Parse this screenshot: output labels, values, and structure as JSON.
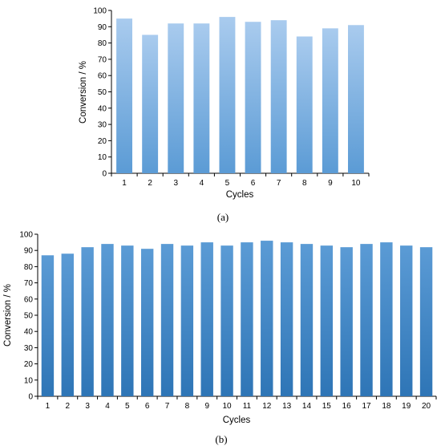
{
  "chart_data": [
    {
      "type": "bar",
      "panel_label": "(a)",
      "categories": [
        "1",
        "2",
        "3",
        "4",
        "5",
        "6",
        "7",
        "8",
        "9",
        "10"
      ],
      "values": [
        95,
        85,
        92,
        92,
        96,
        93,
        94,
        84,
        89,
        91
      ],
      "xlabel": "Cycles",
      "ylabel": "Conversion / %",
      "ylim": [
        0,
        100
      ],
      "yticks": [
        "0",
        "10",
        "20",
        "30",
        "40",
        "50",
        "60",
        "70",
        "80",
        "90",
        "100"
      ],
      "grid": false,
      "bar_color_top": "#a9cbee",
      "bar_color_bottom": "#5b9bd5"
    },
    {
      "type": "bar",
      "panel_label": "(b)",
      "categories": [
        "1",
        "2",
        "3",
        "4",
        "5",
        "6",
        "7",
        "8",
        "9",
        "10",
        "11",
        "12",
        "13",
        "14",
        "15",
        "16",
        "17",
        "18",
        "19",
        "20"
      ],
      "values": [
        87,
        88,
        92,
        94,
        93,
        91,
        94,
        93,
        95,
        93,
        95,
        96,
        95,
        94,
        93,
        92,
        94,
        95,
        93,
        92
      ],
      "xlabel": "Cycles",
      "ylabel": "Conversion / %",
      "ylim": [
        0,
        100
      ],
      "yticks": [
        "0",
        "10",
        "20",
        "30",
        "40",
        "50",
        "60",
        "70",
        "80",
        "90",
        "100"
      ],
      "grid": false,
      "bar_color_top": "#5b9bd5",
      "bar_color_bottom": "#2e75b6"
    }
  ]
}
